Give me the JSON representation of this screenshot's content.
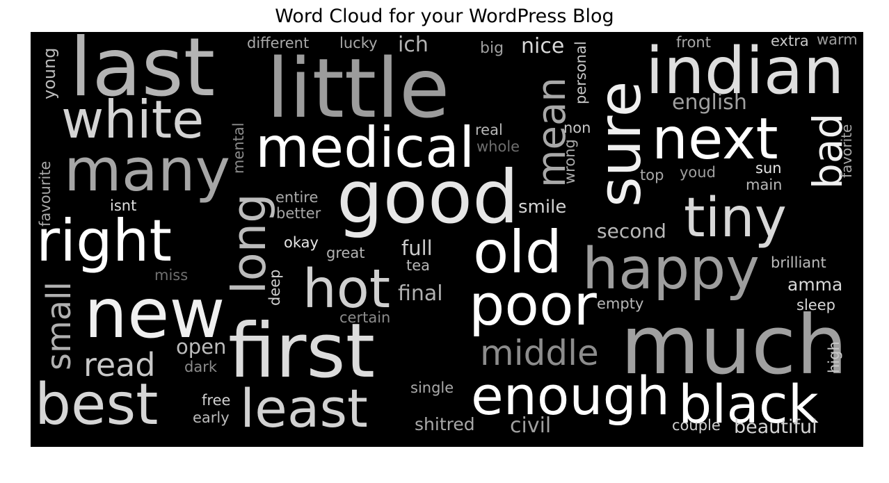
{
  "chart_data": {
    "type": "wordcloud",
    "title": "Word Cloud for your WordPress Blog",
    "background": "#000000",
    "words": [
      {
        "text": "last",
        "shade": "#b4b4b4"
      },
      {
        "text": "little",
        "shade": "#9c9c9c"
      },
      {
        "text": "indian",
        "shade": "#dedede"
      },
      {
        "text": "white",
        "shade": "#d4d4d4"
      },
      {
        "text": "many",
        "shade": "#a6a6a6"
      },
      {
        "text": "medical",
        "shade": "#ffffff"
      },
      {
        "text": "mean",
        "shade": "#a8a8a8"
      },
      {
        "text": "sure",
        "shade": "#f0f0f0"
      },
      {
        "text": "next",
        "shade": "#ffffff"
      },
      {
        "text": "bad",
        "shade": "#f0f0f0"
      },
      {
        "text": "good",
        "shade": "#e6e6e6"
      },
      {
        "text": "right",
        "shade": "#ffffff"
      },
      {
        "text": "long",
        "shade": "#bcbcbc"
      },
      {
        "text": "tiny",
        "shade": "#d8d8d8"
      },
      {
        "text": "old",
        "shade": "#ffffff"
      },
      {
        "text": "happy",
        "shade": "#9e9e9e"
      },
      {
        "text": "hot",
        "shade": "#d0d0d0"
      },
      {
        "text": "new",
        "shade": "#f0f0f0"
      },
      {
        "text": "poor",
        "shade": "#ffffff"
      },
      {
        "text": "first",
        "shade": "#dcdcdc"
      },
      {
        "text": "much",
        "shade": "#a0a0a0"
      },
      {
        "text": "small",
        "shade": "#b0b0b0"
      },
      {
        "text": "read",
        "shade": "#c8c8c8"
      },
      {
        "text": "middle",
        "shade": "#8c8c8c"
      },
      {
        "text": "best",
        "shade": "#d6d6d6"
      },
      {
        "text": "least",
        "shade": "#d2d2d2"
      },
      {
        "text": "enough",
        "shade": "#ffffff"
      },
      {
        "text": "black",
        "shade": "#ffffff"
      },
      {
        "text": "different",
        "shade": "#aaaaaa"
      },
      {
        "text": "lucky",
        "shade": "#aaaaaa"
      },
      {
        "text": "ich",
        "shade": "#b4b4b4"
      },
      {
        "text": "big",
        "shade": "#a0a0a0"
      },
      {
        "text": "nice",
        "shade": "#d8d8d8"
      },
      {
        "text": "personal",
        "shade": "#c8c8c8"
      },
      {
        "text": "front",
        "shade": "#a8a8a8"
      },
      {
        "text": "extra",
        "shade": "#c8c8c8"
      },
      {
        "text": "warm",
        "shade": "#9c9c9c"
      },
      {
        "text": "young",
        "shade": "#bcbcbc"
      },
      {
        "text": "english",
        "shade": "#a0a0a0"
      },
      {
        "text": "favorite",
        "shade": "#a8a8a8"
      },
      {
        "text": "real",
        "shade": "#b8b8b8"
      },
      {
        "text": "whole",
        "shade": "#6e6e6e"
      },
      {
        "text": "non",
        "shade": "#c8c8c8"
      },
      {
        "text": "wrong",
        "shade": "#aaaaaa"
      },
      {
        "text": "mental",
        "shade": "#8c8c8c"
      },
      {
        "text": "favourite",
        "shade": "#a8a8a8"
      },
      {
        "text": "top",
        "shade": "#a8a8a8"
      },
      {
        "text": "youd",
        "shade": "#a0a0a0"
      },
      {
        "text": "sun",
        "shade": "#e6e6e6"
      },
      {
        "text": "main",
        "shade": "#b8b8b8"
      },
      {
        "text": "entire",
        "shade": "#aaaaaa"
      },
      {
        "text": "better",
        "shade": "#a8a8a8"
      },
      {
        "text": "isnt",
        "shade": "#e0e0e0"
      },
      {
        "text": "smile",
        "shade": "#d4d4d4"
      },
      {
        "text": "second",
        "shade": "#b8b8b8"
      },
      {
        "text": "okay",
        "shade": "#e6e6e6"
      },
      {
        "text": "great",
        "shade": "#b4b4b4"
      },
      {
        "text": "full",
        "shade": "#cccccc"
      },
      {
        "text": "tea",
        "shade": "#b8b8b8"
      },
      {
        "text": "brilliant",
        "shade": "#bcbcbc"
      },
      {
        "text": "miss",
        "shade": "#707070"
      },
      {
        "text": "deep",
        "shade": "#d0d0d0"
      },
      {
        "text": "final",
        "shade": "#b0b0b0"
      },
      {
        "text": "amma",
        "shade": "#d8d8d8"
      },
      {
        "text": "empty",
        "shade": "#b8b8b8"
      },
      {
        "text": "sleep",
        "shade": "#d8d8d8"
      },
      {
        "text": "certain",
        "shade": "#8c8c8c"
      },
      {
        "text": "open",
        "shade": "#bcbcbc"
      },
      {
        "text": "dark",
        "shade": "#8c8c8c"
      },
      {
        "text": "high",
        "shade": "#c8c8c8"
      },
      {
        "text": "single",
        "shade": "#aaaaaa"
      },
      {
        "text": "free",
        "shade": "#d0d0d0"
      },
      {
        "text": "early",
        "shade": "#bcbcbc"
      },
      {
        "text": "shitred",
        "shade": "#a8a8a8"
      },
      {
        "text": "civil",
        "shade": "#a0a0a0"
      },
      {
        "text": "couple",
        "shade": "#d0d0d0"
      },
      {
        "text": "beautiful",
        "shade": "#d4d4d4"
      }
    ]
  }
}
